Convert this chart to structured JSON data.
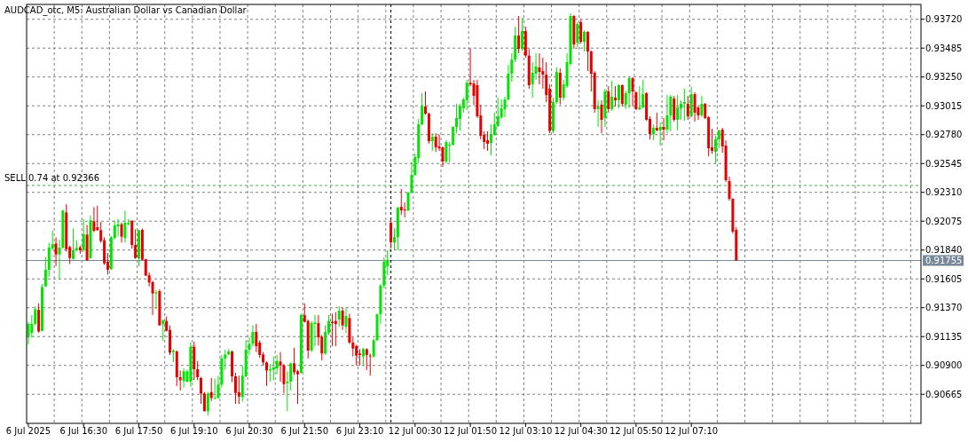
{
  "chart_data": {
    "type": "candlestick",
    "title": "AUDCAD_otc, M5:  Australian Dollar vs Canadian Dollar",
    "categories": [
      "6 Jul 2025",
      null,
      null,
      null,
      null,
      null,
      null,
      null,
      null,
      null,
      null,
      null,
      null,
      null,
      null,
      null,
      "6 Jul 16:30",
      null,
      null,
      null,
      null,
      null,
      null,
      null,
      null,
      null,
      null,
      null,
      null,
      null,
      null,
      null,
      "6 Jul 17:50",
      null,
      null,
      null,
      null,
      null,
      null,
      null,
      null,
      null,
      null,
      null,
      null,
      null,
      null,
      null,
      "6 Jul 19:10",
      null,
      null,
      null,
      null,
      null,
      null,
      null,
      null,
      null,
      null,
      null,
      null,
      null,
      null,
      null,
      "6 Jul 20:30",
      null,
      null,
      null,
      null,
      null,
      null,
      null,
      null,
      null,
      null,
      null,
      null,
      null,
      null,
      null,
      "6 Jul 21:50",
      null,
      null,
      null,
      null,
      null,
      null,
      null,
      null,
      null,
      null,
      null,
      null,
      null,
      null,
      null,
      "6 Jul 23:10",
      null,
      null,
      null,
      null,
      null,
      null,
      null,
      null,
      null,
      null,
      null,
      null,
      null,
      null,
      null,
      "12 Jul 00:30",
      null,
      null,
      null,
      null,
      null,
      null,
      null,
      null,
      null,
      null,
      null,
      null,
      null,
      null,
      null,
      "12 Jul 01:50",
      null,
      null,
      null,
      null,
      null,
      null,
      null,
      null,
      null,
      null,
      null,
      null,
      null,
      null,
      null,
      "12 Jul 03:10",
      null,
      null,
      null,
      null,
      null,
      null,
      null,
      null,
      null,
      null,
      null,
      null,
      null,
      null,
      null,
      "12 Jul 04:30",
      null,
      null,
      null,
      null,
      null,
      null,
      null,
      null,
      null,
      null,
      null,
      null,
      null,
      null,
      null,
      "12 Jul 05:50",
      null,
      null,
      null,
      null,
      null,
      null,
      null,
      null,
      null,
      null,
      null,
      null,
      null,
      null,
      null,
      "12 Jul 07:10",
      null,
      null,
      null,
      null,
      null,
      null,
      null,
      null,
      null,
      null,
      null,
      null,
      null,
      null,
      null,
      null,
      null,
      null,
      null,
      null,
      null,
      null,
      null,
      null,
      null,
      null,
      null,
      null,
      null,
      null,
      null,
      null,
      null,
      null,
      null,
      null,
      null,
      null,
      null,
      null,
      null,
      null,
      null,
      null,
      null,
      null,
      null,
      null,
      null,
      null,
      null,
      null,
      null,
      null,
      null,
      null,
      null,
      null,
      null,
      null,
      null,
      null,
      null,
      null,
      null,
      null
    ],
    "colors": [
      "#00e600",
      "#00e600",
      "#00e600",
      "#e60000",
      "#00e600",
      "#00e600",
      "#00e600",
      "#00e600",
      "#e60000",
      "#00e600",
      "#00e600",
      "#e60000",
      "#e60000",
      "#00e600",
      "#00e600",
      "#e60000",
      "#00e600",
      "#e60000",
      "#00e600",
      "#e60000",
      "#e60000",
      "#e60000",
      "#e60000",
      "#e60000",
      "#00e600",
      "#00e600",
      "#00e600",
      "#e60000",
      "#00e600",
      "#00e600",
      "#e60000",
      "#e60000",
      "#00e600",
      "#e60000",
      "#e60000",
      "#e60000",
      "#e60000",
      "#00e600",
      "#e60000",
      "#00e600",
      "#e60000",
      "#e60000",
      "#00e600",
      "#e60000",
      "#e60000",
      "#00e600",
      "#00e600",
      "#00e600",
      "#e60000",
      "#e60000",
      "#e60000",
      "#e60000",
      "#00e600",
      "#e60000",
      "#00e600",
      "#00e600",
      "#00e600",
      "#00e600",
      "#00e600",
      "#e60000",
      "#e60000",
      "#e60000",
      "#00e600",
      "#00e600",
      "#00e600",
      "#00e600",
      "#e60000",
      "#e60000",
      "#e60000",
      "#e60000",
      "#00e600",
      "#00e600",
      "#00e600",
      "#e60000",
      "#e60000",
      "#00e600",
      "#00e600",
      "#e60000",
      "#e60000",
      "#00e600",
      "#e60000",
      "#e60000",
      "#00e600",
      "#00e600",
      "#e60000",
      "#e60000",
      "#00e600",
      "#00e600",
      "#e60000",
      "#e60000",
      "#00e600",
      "#e60000",
      "#00e600",
      "#e60000",
      "#e60000",
      "#e60000",
      "#e60000",
      "#00e600",
      "#e60000",
      "#e60000",
      "#00e600",
      "#00e600",
      "#00e600",
      "#00e600",
      "#00e600",
      "#e60000",
      "#00e600",
      "#00e600",
      "#e60000",
      "#e60000",
      "#00e600",
      "#00e600",
      "#00e600",
      "#00e600",
      "#00e600",
      "#e60000",
      "#e60000",
      "#00e600",
      "#e60000",
      "#e60000",
      "#e60000",
      "#00e600",
      "#00e600",
      "#00e600",
      "#00e600",
      "#00e600",
      "#00e600",
      "#00e600",
      "#e60000",
      "#e60000",
      "#e60000",
      "#e60000",
      "#e60000",
      "#e60000",
      "#00e600",
      "#00e600",
      "#00e600",
      "#00e600",
      "#00e600",
      "#00e600",
      "#00e600",
      "#00e600",
      "#e60000",
      "#00e600",
      "#e60000",
      "#e60000",
      "#00e600",
      "#00e600",
      "#e60000",
      "#e60000",
      "#e60000",
      "#e60000",
      "#00e600",
      "#00e600",
      "#e60000",
      "#00e600",
      "#00e600",
      "#00e600",
      "#e60000",
      "#00e600",
      "#e60000",
      "#00e600",
      "#e60000",
      "#e60000",
      "#e60000",
      "#00e600",
      "#e60000",
      "#00e600",
      "#e60000",
      "#00e600",
      "#e60000",
      "#00e600",
      "#e60000",
      "#00e600",
      "#00e600",
      "#e60000",
      "#e60000",
      "#00e600",
      "#00e600",
      "#e60000",
      "#e60000",
      "#00e600",
      "#e60000",
      "#00e600",
      "#e60000",
      "#00e600",
      "#00e600",
      "#e60000",
      "#00e600",
      "#00e600",
      "#00e600",
      "#e60000",
      "#00e600",
      "#e60000",
      "#e60000",
      "#00e600",
      "#e60000",
      "#e60000",
      "#e60000",
      "#00e600",
      "#00e600",
      "#e60000",
      "#e60000",
      "#e60000",
      "#e60000",
      "#e60000",
      null,
      null,
      null,
      null,
      null,
      null,
      null,
      null,
      null,
      null,
      null,
      null,
      null,
      null,
      null,
      null,
      null,
      null,
      null,
      null,
      null,
      null,
      null,
      null,
      null,
      null,
      null,
      null,
      null,
      null,
      null,
      null,
      null,
      null,
      null,
      null,
      null,
      null,
      null,
      null,
      null,
      null,
      null,
      null,
      null,
      null,
      null,
      null,
      null,
      null,
      null,
      null,
      null
    ],
    "ohlc": [
      [
        0.91129,
        0.91255,
        0.91069,
        0.91238
      ],
      [
        0.91165,
        0.9131,
        0.91129,
        0.91238
      ],
      [
        0.91238,
        0.91382,
        0.91226,
        0.91358
      ],
      [
        0.91353,
        0.91406,
        0.91165,
        0.91177
      ],
      [
        0.91182,
        0.91563,
        0.91177,
        0.91539
      ],
      [
        0.91544,
        0.9178,
        0.91539,
        0.91679
      ],
      [
        0.91679,
        0.919,
        0.91623,
        0.9186
      ],
      [
        0.91852,
        0.91997,
        0.9184,
        0.91888
      ],
      [
        0.91893,
        0.91944,
        0.91708,
        0.91804
      ],
      [
        0.91804,
        0.91925,
        0.91599,
        0.9186
      ],
      [
        0.9186,
        0.9217,
        0.91852,
        0.92161
      ],
      [
        0.92146,
        0.92214,
        0.91828,
        0.91847
      ],
      [
        0.91864,
        0.91876,
        0.91727,
        0.91775
      ],
      [
        0.91768,
        0.92016,
        0.91761,
        0.9184
      ],
      [
        0.9184,
        0.9192,
        0.91828,
        0.91857
      ],
      [
        0.91862,
        0.91876,
        0.91809,
        0.91838
      ],
      [
        0.9184,
        0.92093,
        0.91828,
        0.91968
      ],
      [
        0.91966,
        0.92045,
        0.91751,
        0.91756
      ],
      [
        0.91775,
        0.92122,
        0.91768,
        0.92081
      ],
      [
        0.92074,
        0.9219,
        0.91985,
        0.91997
      ],
      [
        0.92026,
        0.92202,
        0.91997,
        0.92002
      ],
      [
        0.92002,
        0.92069,
        0.919,
        0.91913
      ],
      [
        0.9192,
        0.91944,
        0.9172,
        0.91732
      ],
      [
        0.91744,
        0.91816,
        0.9164,
        0.91679
      ],
      [
        0.91684,
        0.91954,
        0.91679,
        0.91944
      ],
      [
        0.91937,
        0.92081,
        0.91929,
        0.9204
      ],
      [
        0.92033,
        0.92093,
        0.91954,
        0.9205
      ],
      [
        0.9205,
        0.92064,
        0.919,
        0.91949
      ],
      [
        0.91937,
        0.92161,
        0.919,
        0.92062
      ],
      [
        0.9205,
        0.92093,
        0.9204,
        0.92062
      ],
      [
        0.92079,
        0.92081,
        0.91852,
        0.91881
      ],
      [
        0.91881,
        0.92009,
        0.91768,
        0.91775
      ],
      [
        0.91773,
        0.92006,
        0.91708,
        0.92002
      ],
      [
        0.92004,
        0.92016,
        0.91756,
        0.91761
      ],
      [
        0.91766,
        0.91768,
        0.91631,
        0.91631
      ],
      [
        0.91635,
        0.91659,
        0.91544,
        0.91575
      ],
      [
        0.9158,
        0.91587,
        0.9131,
        0.91486
      ],
      [
        0.91486,
        0.91515,
        0.91358,
        0.91495
      ],
      [
        0.91505,
        0.9152,
        0.91226,
        0.91226
      ],
      [
        0.91235,
        0.91274,
        0.911,
        0.91267
      ],
      [
        0.91262,
        0.91298,
        0.91177,
        0.91182
      ],
      [
        0.91189,
        0.91226,
        0.90985,
        0.91004
      ],
      [
        0.91009,
        0.91033,
        0.90925,
        0.91021
      ],
      [
        0.91014,
        0.91021,
        0.90732,
        0.90804
      ],
      [
        0.90804,
        0.90859,
        0.90696,
        0.9078
      ],
      [
        0.90773,
        0.90876,
        0.9072,
        0.90852
      ],
      [
        0.90768,
        0.90864,
        0.90763,
        0.90852
      ],
      [
        0.90768,
        0.91086,
        0.90724,
        0.91052
      ],
      [
        0.91052,
        0.91093,
        0.9078,
        0.90869
      ],
      [
        0.90869,
        0.90936,
        0.9078,
        0.90804
      ],
      [
        0.90797,
        0.90806,
        0.90587,
        0.90671
      ],
      [
        0.90671,
        0.90683,
        0.90527,
        0.90527
      ],
      [
        0.90527,
        0.90683,
        0.90491,
        0.90671
      ],
      [
        0.90683,
        0.90797,
        0.90611,
        0.90635
      ],
      [
        0.9063,
        0.90792,
        0.90623,
        0.90635
      ],
      [
        0.90635,
        0.90816,
        0.90628,
        0.90744
      ],
      [
        0.90744,
        0.90985,
        0.9072,
        0.90956
      ],
      [
        0.90956,
        0.91028,
        0.90864,
        0.90989
      ],
      [
        0.90989,
        0.91033,
        0.90985,
        0.91014
      ],
      [
        0.91014,
        0.91021,
        0.90763,
        0.90811
      ],
      [
        0.90811,
        0.9084,
        0.90587,
        0.90676
      ],
      [
        0.90681,
        0.90816,
        0.90587,
        0.90647
      ],
      [
        0.90642,
        0.909,
        0.90604,
        0.90816
      ],
      [
        0.90811,
        0.91105,
        0.90804,
        0.91028
      ],
      [
        0.91028,
        0.91129,
        0.90985,
        0.91076
      ],
      [
        0.91076,
        0.91226,
        0.91057,
        0.91173
      ],
      [
        0.91173,
        0.91238,
        0.91009,
        0.91057
      ],
      [
        0.91086,
        0.91105,
        0.90961,
        0.90985
      ],
      [
        0.90989,
        0.91009,
        0.909,
        0.90924
      ],
      [
        0.90924,
        0.90932,
        0.90732,
        0.90859
      ],
      [
        0.90859,
        0.90912,
        0.90768,
        0.90869
      ],
      [
        0.90864,
        0.90973,
        0.9078,
        0.90883
      ],
      [
        0.90876,
        0.90985,
        0.90828,
        0.90936
      ],
      [
        0.90932,
        0.91009,
        0.90768,
        0.909
      ],
      [
        0.909,
        0.90912,
        0.90676,
        0.90748
      ],
      [
        0.90756,
        0.90852,
        0.90527,
        0.90768
      ],
      [
        0.90768,
        0.90924,
        0.90695,
        0.90917
      ],
      [
        0.90917,
        0.91045,
        0.90821,
        0.90845
      ],
      [
        0.90852,
        0.90864,
        0.90587,
        0.90828
      ],
      [
        0.9084,
        0.91322,
        0.90835,
        0.9131
      ],
      [
        0.9131,
        0.91406,
        0.9125,
        0.91255
      ],
      [
        0.91262,
        0.91274,
        0.90956,
        0.91021
      ],
      [
        0.91021,
        0.91262,
        0.91009,
        0.91245
      ],
      [
        0.91238,
        0.9131,
        0.91057,
        0.9125
      ],
      [
        0.91245,
        0.9131,
        0.91062,
        0.91129
      ],
      [
        0.91134,
        0.91148,
        0.90941,
        0.90997
      ],
      [
        0.90997,
        0.91226,
        0.90985,
        0.91173
      ],
      [
        0.91165,
        0.9131,
        0.91148,
        0.91262
      ],
      [
        0.91255,
        0.91322,
        0.91057,
        0.91245
      ],
      [
        0.91262,
        0.91334,
        0.91057,
        0.91238
      ],
      [
        0.91274,
        0.91382,
        0.91214,
        0.91346
      ],
      [
        0.91346,
        0.9137,
        0.91189,
        0.91226
      ],
      [
        0.91214,
        0.9137,
        0.91165,
        0.91303
      ],
      [
        0.91286,
        0.91322,
        0.91076,
        0.91086
      ],
      [
        0.91086,
        0.91129,
        0.90973,
        0.91038
      ],
      [
        0.91057,
        0.91069,
        0.909,
        0.9098
      ],
      [
        0.90997,
        0.91033,
        0.909,
        0.90985
      ],
      [
        0.90973,
        0.91045,
        0.909,
        0.91033
      ],
      [
        0.91033,
        0.91038,
        0.90864,
        0.90985
      ],
      [
        0.9098,
        0.90997,
        0.90816,
        0.90973
      ],
      [
        0.90973,
        0.91117,
        0.90961,
        0.91105
      ],
      [
        0.91105,
        0.91322,
        0.911,
        0.91317
      ],
      [
        0.91317,
        0.91563,
        0.91238,
        0.91551
      ],
      [
        0.91549,
        0.9178,
        0.91527,
        0.91744
      ],
      [
        0.91708,
        0.91838,
        0.91635,
        0.91758
      ],
      [
        0.92062,
        0.92084,
        0.91852,
        0.91903
      ],
      [
        0.91903,
        0.92018,
        0.91838,
        0.91946
      ],
      [
        0.91946,
        0.92192,
        0.91838,
        0.92185
      ],
      [
        0.92192,
        0.92337,
        0.92127,
        0.92163
      ],
      [
        0.9217,
        0.92228,
        0.92105,
        0.92163
      ],
      [
        0.92163,
        0.92315,
        0.92156,
        0.92308
      ],
      [
        0.92308,
        0.92561,
        0.92301,
        0.92452
      ],
      [
        0.92452,
        0.92626,
        0.92445,
        0.92597
      ],
      [
        0.9259,
        0.92908,
        0.92546,
        0.92864
      ],
      [
        0.92864,
        0.93118,
        0.92857,
        0.93016
      ],
      [
        0.93009,
        0.93132,
        0.92944,
        0.92951
      ],
      [
        0.92951,
        0.92959,
        0.92706,
        0.92727
      ],
      [
        0.92727,
        0.92792,
        0.92648,
        0.92763
      ],
      [
        0.92763,
        0.92792,
        0.9264,
        0.92677
      ],
      [
        0.92684,
        0.92778,
        0.92648,
        0.92669
      ],
      [
        0.92677,
        0.92684,
        0.92517,
        0.92561
      ],
      [
        0.92561,
        0.92734,
        0.92546,
        0.9272
      ],
      [
        0.92691,
        0.9272,
        0.92554,
        0.92698
      ],
      [
        0.92698,
        0.9285,
        0.92691,
        0.92843
      ],
      [
        0.92843,
        0.93031,
        0.92792,
        0.92915
      ],
      [
        0.92908,
        0.93031,
        0.92814,
        0.93009
      ],
      [
        0.92995,
        0.93081,
        0.92959,
        0.93067
      ],
      [
        0.9306,
        0.93226,
        0.9298,
        0.93204
      ],
      [
        0.93204,
        0.9348,
        0.93176,
        0.9319
      ],
      [
        0.93197,
        0.93226,
        0.93024,
        0.93096
      ],
      [
        0.93183,
        0.93226,
        0.92915,
        0.9293
      ],
      [
        0.92937,
        0.93024,
        0.92742,
        0.92771
      ],
      [
        0.92778,
        0.92807,
        0.92662,
        0.9272
      ],
      [
        0.92734,
        0.92807,
        0.92648,
        0.92706
      ],
      [
        0.92713,
        0.92864,
        0.92611,
        0.92785
      ],
      [
        0.92778,
        0.92959,
        0.92771,
        0.92864
      ],
      [
        0.9285,
        0.93081,
        0.92843,
        0.9293
      ],
      [
        0.92922,
        0.93067,
        0.92908,
        0.92995
      ],
      [
        0.92987,
        0.93089,
        0.92922,
        0.93067
      ],
      [
        0.93067,
        0.93349,
        0.9306,
        0.93277
      ],
      [
        0.93277,
        0.93443,
        0.93212,
        0.93392
      ],
      [
        0.93392,
        0.9366,
        0.93371,
        0.93588
      ],
      [
        0.93588,
        0.93747,
        0.93443,
        0.93479
      ],
      [
        0.93479,
        0.93732,
        0.93463,
        0.93624
      ],
      [
        0.93624,
        0.9366,
        0.93407,
        0.93424
      ],
      [
        0.93424,
        0.93479,
        0.93154,
        0.93183
      ],
      [
        0.9319,
        0.93371,
        0.93081,
        0.93284
      ],
      [
        0.93277,
        0.93443,
        0.93226,
        0.93335
      ],
      [
        0.93327,
        0.93443,
        0.9319,
        0.93291
      ],
      [
        0.93298,
        0.93407,
        0.93154,
        0.93269
      ],
      [
        0.93269,
        0.93371,
        0.93045,
        0.93103
      ],
      [
        0.93154,
        0.9319,
        0.92792,
        0.92809
      ],
      [
        0.92809,
        0.93081,
        0.92792,
        0.93045
      ],
      [
        0.93045,
        0.93327,
        0.93031,
        0.93291
      ],
      [
        0.93284,
        0.9332,
        0.93026,
        0.93081
      ],
      [
        0.93081,
        0.93226,
        0.9306,
        0.9319
      ],
      [
        0.93175,
        0.93443,
        0.93161,
        0.93371
      ],
      [
        0.93356,
        0.93768,
        0.93342,
        0.93747
      ],
      [
        0.93747,
        0.93754,
        0.93479,
        0.93515
      ],
      [
        0.9353,
        0.93696,
        0.93494,
        0.93682
      ],
      [
        0.93696,
        0.93718,
        0.93523,
        0.93537
      ],
      [
        0.93537,
        0.93631,
        0.93458,
        0.93617
      ],
      [
        0.93617,
        0.93624,
        0.93298,
        0.93458
      ],
      [
        0.93458,
        0.93465,
        0.93132,
        0.93277
      ],
      [
        0.93284,
        0.93298,
        0.92959,
        0.92988
      ],
      [
        0.92988,
        0.9306,
        0.92843,
        0.93009
      ],
      [
        0.93024,
        0.9306,
        0.92792,
        0.92901
      ],
      [
        0.92915,
        0.93154,
        0.92843,
        0.93132
      ],
      [
        0.93132,
        0.93175,
        0.92959,
        0.92988
      ],
      [
        0.92988,
        0.93219,
        0.92973,
        0.93089
      ],
      [
        0.93081,
        0.93175,
        0.93009,
        0.9306
      ],
      [
        0.9306,
        0.9319,
        0.92995,
        0.93183
      ],
      [
        0.93183,
        0.9319,
        0.93009,
        0.93031
      ],
      [
        0.93024,
        0.93139,
        0.92988,
        0.93118
      ],
      [
        0.93118,
        0.93248,
        0.92995,
        0.9324
      ],
      [
        0.9324,
        0.93248,
        0.93009,
        0.93132
      ],
      [
        0.93125,
        0.93132,
        0.9298,
        0.92988
      ],
      [
        0.92988,
        0.93175,
        0.9298,
        0.93002
      ],
      [
        0.93002,
        0.93226,
        0.92995,
        0.9311
      ],
      [
        0.93118,
        0.93125,
        0.92894,
        0.92901
      ],
      [
        0.92908,
        0.9293,
        0.92742,
        0.92785
      ],
      [
        0.92785,
        0.92864,
        0.92734,
        0.92836
      ],
      [
        0.92836,
        0.92959,
        0.92807,
        0.92814
      ],
      [
        0.92814,
        0.92879,
        0.9269,
        0.92843
      ],
      [
        0.92843,
        0.92915,
        0.92734,
        0.92821
      ],
      [
        0.92821,
        0.93103,
        0.92792,
        0.92937
      ],
      [
        0.92937,
        0.93103,
        0.92807,
        0.93089
      ],
      [
        0.93074,
        0.93096,
        0.92886,
        0.92901
      ],
      [
        0.92901,
        0.93103,
        0.92814,
        0.93002
      ],
      [
        0.92995,
        0.9306,
        0.92901,
        0.93031
      ],
      [
        0.93031,
        0.93154,
        0.92894,
        0.93045
      ],
      [
        0.93031,
        0.93096,
        0.92901,
        0.9293
      ],
      [
        0.9293,
        0.93168,
        0.92922,
        0.9311
      ],
      [
        0.9311,
        0.93125,
        0.92886,
        0.92959
      ],
      [
        0.93002,
        0.93009,
        0.92901,
        0.92937
      ],
      [
        0.92937,
        0.93096,
        0.92922,
        0.93031
      ],
      [
        0.93031,
        0.93038,
        0.92908,
        0.92915
      ],
      [
        0.92922,
        0.9293,
        0.92604,
        0.92669
      ],
      [
        0.92677,
        0.92828,
        0.92626,
        0.92648
      ],
      [
        0.9264,
        0.9277,
        0.92539,
        0.92742
      ],
      [
        0.92742,
        0.92821,
        0.92669,
        0.92814
      ],
      [
        0.92821,
        0.92836,
        0.92633,
        0.92684
      ],
      [
        0.92691,
        0.92734,
        0.92394,
        0.92409
      ],
      [
        0.92402,
        0.92438,
        0.92243,
        0.92257
      ],
      [
        0.92257,
        0.92264,
        0.91975,
        0.9199
      ],
      [
        0.92004,
        0.92026,
        0.91755,
        0.91755
      ],
      null,
      null,
      null,
      null,
      null,
      null,
      null,
      null,
      null,
      null,
      null,
      null,
      null,
      null,
      null,
      null,
      null,
      null,
      null,
      null,
      null,
      null,
      null,
      null,
      null,
      null,
      null,
      null,
      null,
      null,
      null,
      null,
      null,
      null,
      null,
      null,
      null,
      null,
      null,
      null,
      null,
      null,
      null,
      null,
      null,
      null,
      null,
      null,
      null,
      null,
      null,
      null,
      null
    ],
    "ylim": [
      0.90428,
      0.93841
    ],
    "yticks": [
      {
        "value": 0.9372,
        "label": "0.93720"
      },
      {
        "value": 0.93485,
        "label": "0.93485"
      },
      {
        "value": 0.9325,
        "label": "0.93250"
      },
      {
        "value": 0.93015,
        "label": "0.93015"
      },
      {
        "value": 0.9278,
        "label": "0.92780"
      },
      {
        "value": 0.92545,
        "label": "0.92545"
      },
      {
        "value": 0.9231,
        "label": "0.92310"
      },
      {
        "value": 0.92075,
        "label": "0.92075"
      },
      {
        "value": 0.9184,
        "label": "0.91840"
      },
      {
        "value": 0.91605,
        "label": "0.91605"
      },
      {
        "value": 0.9137,
        "label": "0.91370"
      },
      {
        "value": 0.91135,
        "label": "0.91135"
      },
      {
        "value": 0.909,
        "label": "0.90900"
      },
      {
        "value": 0.90665,
        "label": "0.90665"
      }
    ],
    "grid": true,
    "ref_lines": [
      {
        "axis": "y",
        "value": 0.92366,
        "label": "SELL 0.74 at 0.92366",
        "color": "#3cb43c",
        "line_style": "dashed"
      },
      {
        "axis": "y",
        "value": 0.91755,
        "label": "0.91755",
        "color": "#778899",
        "line_style": "solid"
      }
    ]
  }
}
